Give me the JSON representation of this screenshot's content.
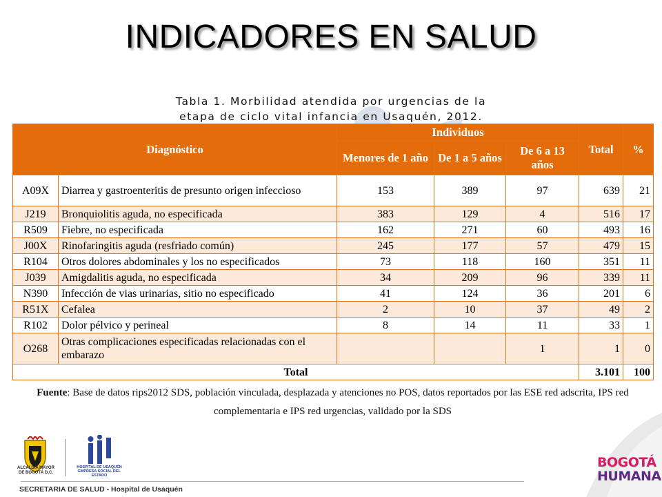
{
  "slide": {
    "title": "INDICADORES EN SALUD"
  },
  "caption": {
    "line1": "Tabla 1. Morbilidad atendida por urgencias de la",
    "line2": "etapa de ciclo vital infancia en Usaquén, 2012."
  },
  "table": {
    "headers": {
      "diagnostico": "Diagnóstico",
      "individuos": "Individuos",
      "menores": "Menores de 1 año",
      "de1a5": "De 1 a 5 años",
      "de6a13": "De 6 a 13 años",
      "total": "Total",
      "pct": "%"
    },
    "rows": [
      {
        "code": "A09X",
        "diagnosis": "Diarrea y gastroenteritis de presunto origen infeccioso",
        "menores": "153",
        "de1a5": "389",
        "de6a13": "97",
        "total": "639",
        "pct": "21"
      },
      {
        "code": "J219",
        "diagnosis": "Bronquiolitis aguda, no especificada",
        "menores": "383",
        "de1a5": "129",
        "de6a13": "4",
        "total": "516",
        "pct": "17"
      },
      {
        "code": "R509",
        "diagnosis": "Fiebre, no especificada",
        "menores": "162",
        "de1a5": "271",
        "de6a13": "60",
        "total": "493",
        "pct": "16"
      },
      {
        "code": "J00X",
        "diagnosis": "Rinofaringitis aguda (resfriado común)",
        "menores": "245",
        "de1a5": "177",
        "de6a13": "57",
        "total": "479",
        "pct": "15"
      },
      {
        "code": "R104",
        "diagnosis": "Otros dolores abdominales y los no especificados",
        "menores": "73",
        "de1a5": "118",
        "de6a13": "160",
        "total": "351",
        "pct": "11"
      },
      {
        "code": "J039",
        "diagnosis": "Amigdalitis aguda, no especificada",
        "menores": "34",
        "de1a5": "209",
        "de6a13": "96",
        "total": "339",
        "pct": "11"
      },
      {
        "code": "N390",
        "diagnosis": "Infección de vias urinarias, sitio no especificado",
        "menores": "41",
        "de1a5": "124",
        "de6a13": "36",
        "total": "201",
        "pct": "6"
      },
      {
        "code": "R51X",
        "diagnosis": "Cefalea",
        "menores": "2",
        "de1a5": "10",
        "de6a13": "37",
        "total": "49",
        "pct": "2"
      },
      {
        "code": "R102",
        "diagnosis": "Dolor pélvico y perineal",
        "menores": "8",
        "de1a5": "14",
        "de6a13": "11",
        "total": "33",
        "pct": "1"
      },
      {
        "code": "O268",
        "diagnosis": "Otras complicaciones especificadas relacionadas con el embarazo",
        "menores": "",
        "de1a5": "",
        "de6a13": "1",
        "total": "1",
        "pct": "0"
      }
    ],
    "total_row": {
      "label": "Total",
      "total": "3.101",
      "pct": "100"
    }
  },
  "source": {
    "label": "Fuente",
    "text": ": Base de datos rips2012 SDS, población vinculada, desplazada y atenciones no POS, datos reportados por las ESE red adscrita, IPS red complementaria e IPS red urgencias, validado por la SDS"
  },
  "footer": {
    "text": "SECRETARIA DE SALUD - Hospital de Usaquén",
    "alcaldia_line1": "ALCALDÍA MAYOR",
    "alcaldia_line2": "DE BOGOTÁ D.C.",
    "hospital_line1": "HOSPITAL DE USAQUÉN",
    "hospital_line2": "EMPRESA SOCIAL DEL ESTADO",
    "bogota_line1": "BOGOTÁ",
    "bogota_line2": "HUMANA"
  },
  "colors": {
    "header_orange": "#e46c0a",
    "row_band": "#fde9d9",
    "logo_blue": "#2b4a9b"
  }
}
